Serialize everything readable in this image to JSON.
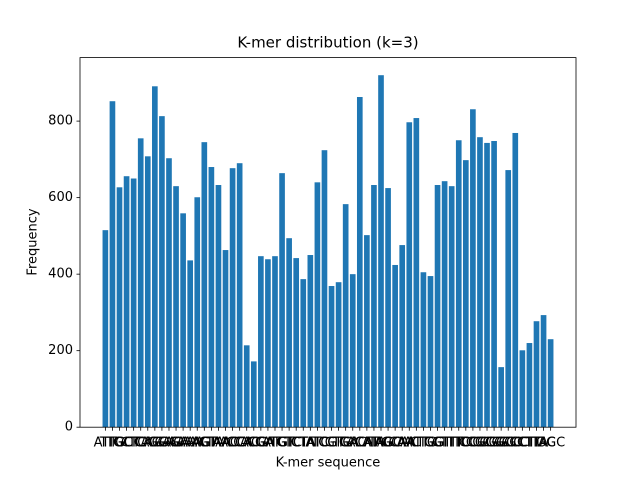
{
  "chart_data": {
    "type": "bar",
    "title": "K-mer distribution (k=3)",
    "xlabel": "K-mer sequence",
    "ylabel": "Frequency",
    "categories": [
      "ATT",
      "TTG",
      "TGC",
      "GCT",
      "CTC",
      "TCA",
      "CAG",
      "AGG",
      "GGA",
      "GAG",
      "AGA",
      "GAA",
      "AAA",
      "AAG",
      "AGT",
      "GTA",
      "TAA",
      "AAC",
      "ACC",
      "CCA",
      "CAC",
      "ACG",
      "CGA",
      "GAT",
      "ATG",
      "TGT",
      "GTC",
      "TCT",
      "CTA",
      "TAT",
      "ATC",
      "TCG",
      "CGT",
      "GTG",
      "TGA",
      "GAC",
      "ACA",
      "CAT",
      "ATA",
      "TAG",
      "AGC",
      "GCA",
      "CAA",
      "AAT",
      "ACT",
      "CTG",
      "TGG",
      "GGT",
      "GTT",
      "TTT",
      "TTC",
      "TCC",
      "CCG",
      "CGC",
      "GCG",
      "CGG",
      "GGG",
      "GCC",
      "CCC",
      "CCT",
      "CTT",
      "TTA",
      "TAC",
      "GGC"
    ],
    "values": [
      515,
      852,
      627,
      656,
      650,
      755,
      708,
      891,
      813,
      703,
      630,
      559,
      436,
      601,
      745,
      680,
      633,
      463,
      677,
      690,
      214,
      172,
      447,
      439,
      447,
      664,
      494,
      442,
      387,
      450,
      640,
      724,
      369,
      379,
      583,
      400,
      863,
      502,
      633,
      920,
      625,
      424,
      476,
      797,
      808,
      405,
      395,
      633,
      643,
      630,
      750,
      698,
      831,
      758,
      743,
      748,
      157,
      672,
      769,
      201,
      220,
      277,
      293,
      230
    ],
    "color": "#1f77b4",
    "ylim": [
      0,
      966
    ],
    "yticks": [
      0,
      200,
      400,
      600,
      800
    ],
    "grid": false
  }
}
